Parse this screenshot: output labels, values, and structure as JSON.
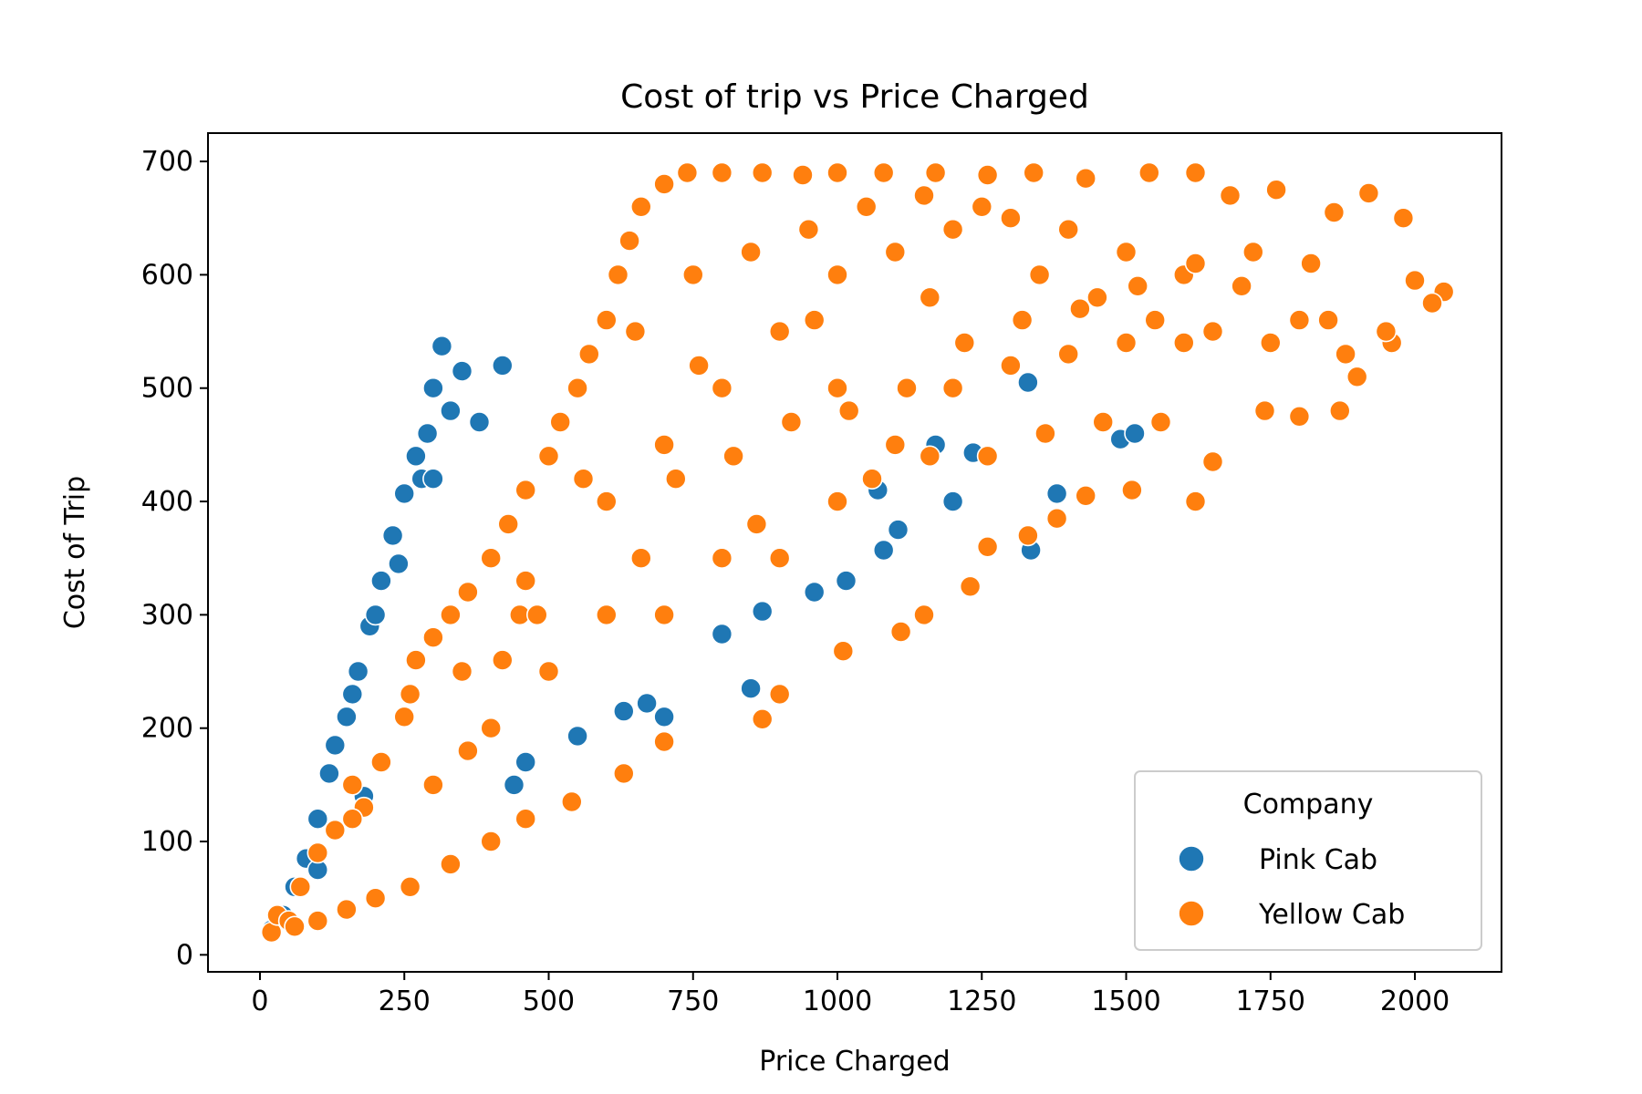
{
  "chart_data": {
    "type": "scatter",
    "title": "Cost of trip vs Price Charged",
    "xlabel": "Price Charged",
    "ylabel": "Cost of Trip",
    "xlim": [
      -90,
      2150
    ],
    "ylim": [
      -15,
      725
    ],
    "xticks": [
      0,
      250,
      500,
      750,
      1000,
      1250,
      1500,
      1750,
      2000
    ],
    "yticks": [
      0,
      100,
      200,
      300,
      400,
      500,
      600,
      700
    ],
    "grid": false,
    "legend": {
      "title": "Company",
      "placement": "lower-right"
    },
    "series": [
      {
        "name": "Pink Cab",
        "color": "#1f77b4",
        "points": [
          [
            20,
            22
          ],
          [
            40,
            35
          ],
          [
            60,
            60
          ],
          [
            80,
            85
          ],
          [
            100,
            120
          ],
          [
            120,
            160
          ],
          [
            150,
            210
          ],
          [
            170,
            250
          ],
          [
            190,
            290
          ],
          [
            210,
            330
          ],
          [
            230,
            370
          ],
          [
            250,
            407
          ],
          [
            270,
            440
          ],
          [
            290,
            460
          ],
          [
            300,
            500
          ],
          [
            315,
            537
          ],
          [
            330,
            480
          ],
          [
            350,
            515
          ],
          [
            380,
            470
          ],
          [
            420,
            520
          ],
          [
            130,
            185
          ],
          [
            160,
            230
          ],
          [
            200,
            300
          ],
          [
            240,
            345
          ],
          [
            280,
            420
          ],
          [
            300,
            420
          ],
          [
            440,
            150
          ],
          [
            460,
            170
          ],
          [
            550,
            193
          ],
          [
            630,
            215
          ],
          [
            670,
            222
          ],
          [
            700,
            210
          ],
          [
            800,
            283
          ],
          [
            850,
            235
          ],
          [
            870,
            303
          ],
          [
            960,
            320
          ],
          [
            1015,
            330
          ],
          [
            1070,
            410
          ],
          [
            1080,
            357
          ],
          [
            1105,
            375
          ],
          [
            1170,
            450
          ],
          [
            1200,
            400
          ],
          [
            1235,
            443
          ],
          [
            1330,
            505
          ],
          [
            1335,
            357
          ],
          [
            1380,
            407
          ],
          [
            1490,
            455
          ],
          [
            1515,
            460
          ],
          [
            100,
            75
          ],
          [
            180,
            140
          ]
        ]
      },
      {
        "name": "Yellow Cab",
        "color": "#ff7f0e",
        "points": [
          [
            20,
            20
          ],
          [
            30,
            35
          ],
          [
            50,
            30
          ],
          [
            70,
            60
          ],
          [
            100,
            90
          ],
          [
            130,
            110
          ],
          [
            160,
            150
          ],
          [
            180,
            130
          ],
          [
            210,
            170
          ],
          [
            250,
            210
          ],
          [
            270,
            260
          ],
          [
            300,
            280
          ],
          [
            330,
            300
          ],
          [
            360,
            320
          ],
          [
            400,
            350
          ],
          [
            430,
            380
          ],
          [
            460,
            410
          ],
          [
            500,
            440
          ],
          [
            520,
            470
          ],
          [
            550,
            500
          ],
          [
            570,
            530
          ],
          [
            600,
            560
          ],
          [
            620,
            600
          ],
          [
            640,
            630
          ],
          [
            660,
            660
          ],
          [
            700,
            680
          ],
          [
            740,
            690
          ],
          [
            800,
            690
          ],
          [
            870,
            690
          ],
          [
            940,
            688
          ],
          [
            1000,
            690
          ],
          [
            1080,
            690
          ],
          [
            1170,
            690
          ],
          [
            1260,
            688
          ],
          [
            1340,
            690
          ],
          [
            1430,
            685
          ],
          [
            1540,
            690
          ],
          [
            1620,
            690
          ],
          [
            1680,
            670
          ],
          [
            1760,
            675
          ],
          [
            1860,
            655
          ],
          [
            1920,
            672
          ],
          [
            1980,
            650
          ],
          [
            2000,
            595
          ],
          [
            2050,
            585
          ],
          [
            2030,
            575
          ],
          [
            1960,
            540
          ],
          [
            1900,
            510
          ],
          [
            1870,
            480
          ],
          [
            1800,
            475
          ],
          [
            1740,
            480
          ],
          [
            1650,
            435
          ],
          [
            1620,
            400
          ],
          [
            1510,
            410
          ],
          [
            1430,
            405
          ],
          [
            1380,
            385
          ],
          [
            1330,
            370
          ],
          [
            1260,
            360
          ],
          [
            1230,
            325
          ],
          [
            1150,
            300
          ],
          [
            1110,
            285
          ],
          [
            1010,
            268
          ],
          [
            900,
            230
          ],
          [
            870,
            208
          ],
          [
            700,
            188
          ],
          [
            630,
            160
          ],
          [
            540,
            135
          ],
          [
            460,
            120
          ],
          [
            400,
            100
          ],
          [
            330,
            80
          ],
          [
            260,
            60
          ],
          [
            200,
            50
          ],
          [
            150,
            40
          ],
          [
            100,
            30
          ],
          [
            60,
            25
          ],
          [
            450,
            300
          ],
          [
            600,
            400
          ],
          [
            700,
            450
          ],
          [
            800,
            500
          ],
          [
            900,
            550
          ],
          [
            1000,
            600
          ],
          [
            1100,
            620
          ],
          [
            1200,
            640
          ],
          [
            1300,
            650
          ],
          [
            1400,
            640
          ],
          [
            1500,
            620
          ],
          [
            1600,
            600
          ],
          [
            1700,
            590
          ],
          [
            1800,
            560
          ],
          [
            900,
            350
          ],
          [
            1000,
            400
          ],
          [
            1100,
            450
          ],
          [
            1200,
            500
          ],
          [
            1300,
            520
          ],
          [
            1400,
            530
          ],
          [
            1500,
            540
          ],
          [
            1600,
            540
          ],
          [
            700,
            300
          ],
          [
            800,
            350
          ],
          [
            1000,
            500
          ],
          [
            600,
            300
          ],
          [
            500,
            250
          ],
          [
            400,
            200
          ],
          [
            300,
            150
          ],
          [
            350,
            250
          ],
          [
            650,
            550
          ],
          [
            750,
            600
          ],
          [
            850,
            620
          ],
          [
            950,
            640
          ],
          [
            1050,
            660
          ],
          [
            1150,
            670
          ],
          [
            1250,
            660
          ],
          [
            1350,
            600
          ],
          [
            1450,
            580
          ],
          [
            1550,
            560
          ],
          [
            1650,
            550
          ],
          [
            1750,
            540
          ],
          [
            1850,
            560
          ],
          [
            1950,
            550
          ],
          [
            560,
            420
          ],
          [
            760,
            520
          ],
          [
            960,
            560
          ],
          [
            1160,
            580
          ],
          [
            1360,
            460
          ],
          [
            1460,
            470
          ],
          [
            1560,
            470
          ],
          [
            1060,
            420
          ],
          [
            1160,
            440
          ],
          [
            1260,
            440
          ],
          [
            860,
            380
          ],
          [
            660,
            350
          ],
          [
            460,
            330
          ],
          [
            260,
            230
          ],
          [
            160,
            120
          ],
          [
            360,
            180
          ],
          [
            420,
            260
          ],
          [
            480,
            300
          ],
          [
            720,
            420
          ],
          [
            820,
            440
          ],
          [
            920,
            470
          ],
          [
            1020,
            480
          ],
          [
            1120,
            500
          ],
          [
            1220,
            540
          ],
          [
            1320,
            560
          ],
          [
            1420,
            570
          ],
          [
            1520,
            590
          ],
          [
            1620,
            610
          ],
          [
            1720,
            620
          ],
          [
            1820,
            610
          ],
          [
            1880,
            530
          ]
        ]
      }
    ]
  }
}
